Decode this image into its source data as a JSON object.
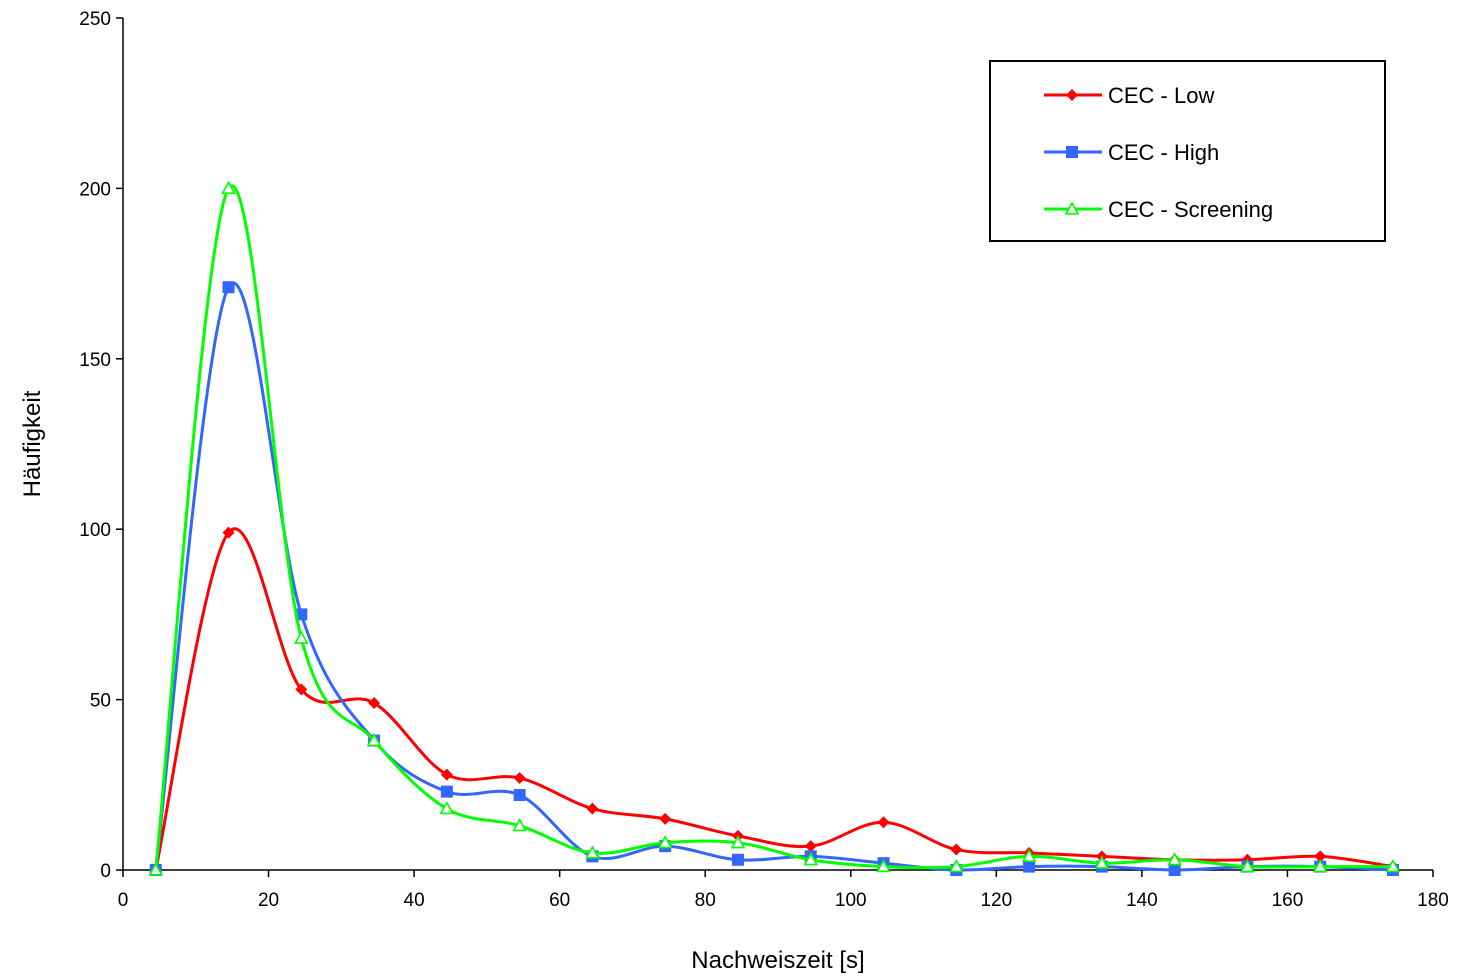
{
  "chart_data": {
    "type": "line",
    "title": "",
    "xlabel": "Nachweiszeit [s]",
    "ylabel": "Häufigkeit",
    "xlim": [
      0,
      180
    ],
    "ylim": [
      0,
      250
    ],
    "xticks": [
      0,
      20,
      40,
      60,
      80,
      100,
      120,
      140,
      160,
      180
    ],
    "yticks": [
      0,
      50,
      100,
      150,
      200,
      250
    ],
    "grid": false,
    "legend_position": "top-right",
    "x": [
      4.5,
      14.5,
      24.5,
      34.5,
      44.5,
      54.5,
      64.5,
      74.5,
      84.5,
      94.5,
      104.5,
      114.5,
      124.5,
      134.5,
      144.5,
      154.5,
      164.5,
      174.5
    ],
    "series": [
      {
        "name": "CEC - Low",
        "color": "#ff0000",
        "marker": "diamond",
        "values": [
          0,
          99,
          53,
          49,
          28,
          27,
          18,
          15,
          10,
          7,
          14,
          6,
          5,
          4,
          3,
          3,
          4,
          1
        ]
      },
      {
        "name": "CEC - High",
        "color": "#3366ff",
        "marker": "square",
        "values": [
          0,
          171,
          75,
          38,
          23,
          22,
          4,
          7,
          3,
          4,
          2,
          0,
          1,
          1,
          0,
          1,
          1,
          0
        ]
      },
      {
        "name": "CEC - Screening",
        "color": "#00ff00",
        "marker": "triangle",
        "values": [
          0,
          200,
          68,
          38,
          18,
          13,
          5,
          8,
          8,
          3,
          1,
          1,
          4,
          2,
          3,
          1,
          1,
          1
        ]
      }
    ]
  }
}
